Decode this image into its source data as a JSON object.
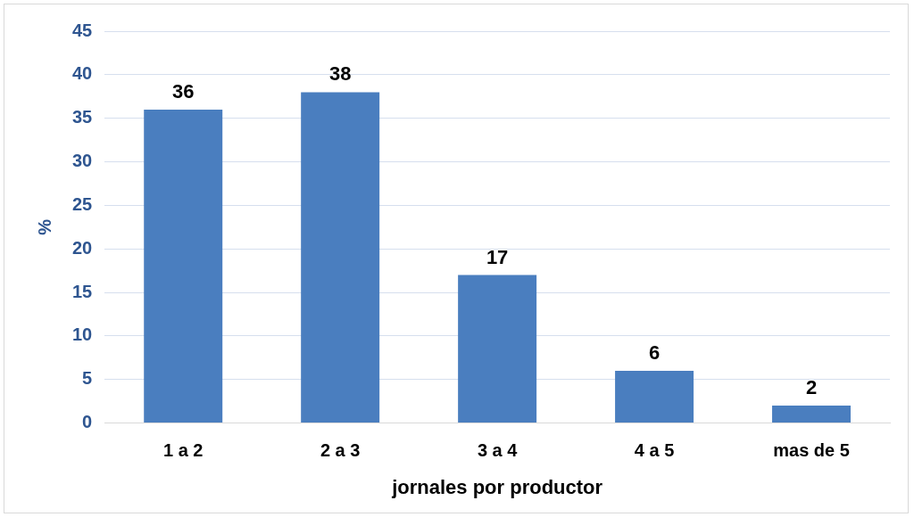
{
  "chart_data": {
    "type": "bar",
    "xlabel": "jornales por productor",
    "ylabel": "%",
    "categories": [
      "1 a 2",
      "2 a 3",
      "3 a 4",
      "4 a 5",
      "mas de 5"
    ],
    "values": [
      36,
      38,
      17,
      6,
      2
    ],
    "color": "#4a7ebf",
    "ylim": [
      0,
      45
    ],
    "yticks": [
      0,
      5,
      10,
      15,
      20,
      25,
      30,
      35,
      40,
      45
    ],
    "grid": "y",
    "data_labels": true,
    "legend": false
  }
}
